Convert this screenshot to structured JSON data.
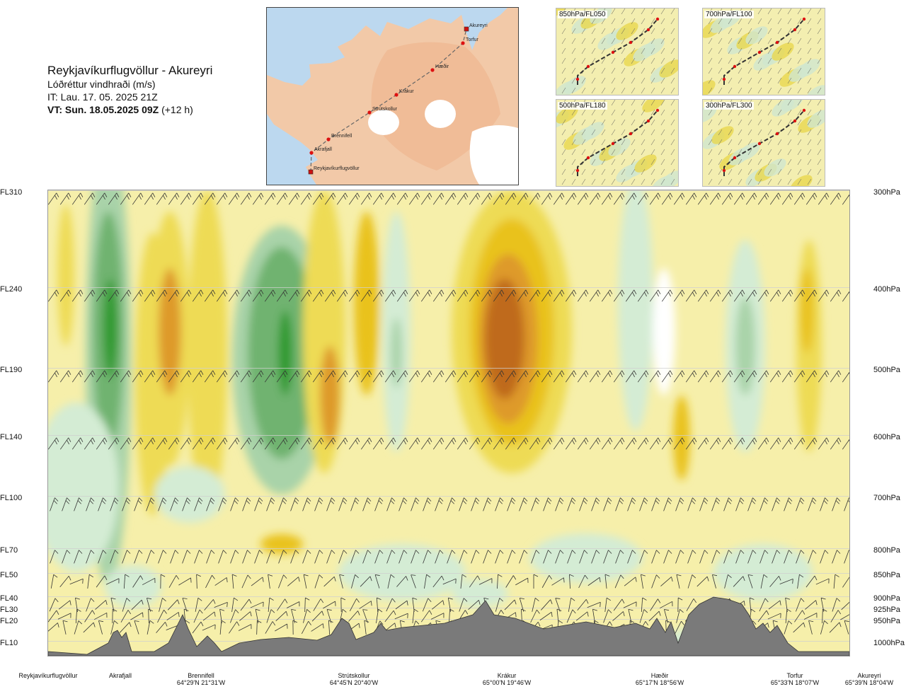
{
  "header": {
    "route": "Reykjavíkurflugvöllur - Akureyri",
    "parameter": "Lóðréttur vindhraði (m/s)",
    "it_label": "IT: Lau. 17. 05. 2025 21Z",
    "vt_label": "VT: Sun. 18.05.2025 09Z",
    "vt_offset": "(+12 h)"
  },
  "map": {
    "waypoints": [
      {
        "name": "Akureyri",
        "marker": "square"
      },
      {
        "name": "Torfur",
        "marker": "dot"
      },
      {
        "name": "Hæðir",
        "marker": "dot"
      },
      {
        "name": "Krákur",
        "marker": "dot"
      },
      {
        "name": "Strútskollur",
        "marker": "dot"
      },
      {
        "name": "Brennifell",
        "marker": "dot"
      },
      {
        "name": "Akrafjall",
        "marker": "dot"
      },
      {
        "name": "Reykjavíkurflugvöllur",
        "marker": "square"
      }
    ],
    "colors": {
      "sea": "#bcd8ef",
      "land": "#f2c9a8",
      "ice": "#ffffff",
      "route": "#666666",
      "waypoint": "#dd1111"
    }
  },
  "thumbnails": [
    {
      "label": "850hPa/FL050"
    },
    {
      "label": "700hPa/FL100"
    },
    {
      "label": "500hPa/FL180"
    },
    {
      "label": "300hPa/FL300"
    }
  ],
  "chart_data": {
    "type": "heatmap",
    "title": "Lóðréttur vindhraði (m/s)",
    "left_axis": [
      "FL310",
      "FL240",
      "FL190",
      "FL140",
      "FL100",
      "FL70",
      "FL50",
      "FL40",
      "FL30",
      "FL20",
      "FL10"
    ],
    "right_axis": [
      "300hPa",
      "400hPa",
      "500hPa",
      "600hPa",
      "700hPa",
      "800hPa",
      "850hPa",
      "900hPa",
      "925hPa",
      "950hPa",
      "1000hPa"
    ],
    "pressure_levels_hpa": [
      300,
      400,
      500,
      600,
      700,
      800,
      850,
      900,
      925,
      950,
      1000
    ],
    "x_locations": [
      {
        "name": "Reykjavíkurflugvöllur",
        "coord": ""
      },
      {
        "name": "Akrafjall",
        "coord": ""
      },
      {
        "name": "Brennifell",
        "coord": "64°29'N 21°31'W"
      },
      {
        "name": "Strútskollur",
        "coord": "64°45'N 20°40'W"
      },
      {
        "name": "Krákur",
        "coord": "65°00'N 19°46'W"
      },
      {
        "name": "Hæðir",
        "coord": "65°17'N 18°56'W"
      },
      {
        "name": "Torfur",
        "coord": "65°33'N 18°07'W"
      },
      {
        "name": "Akureyri",
        "coord": "65°39'N 18°04'W"
      }
    ],
    "color_scale": [
      "#2f9a2f",
      "#6fb36f",
      "#a9d3a9",
      "#d4ecd4",
      "#ffffff",
      "#f6efaa",
      "#eedb55",
      "#e9c21a",
      "#de9a2a",
      "#bf6a1a"
    ],
    "terrain_color": "#7a7a7a",
    "grid": true
  }
}
